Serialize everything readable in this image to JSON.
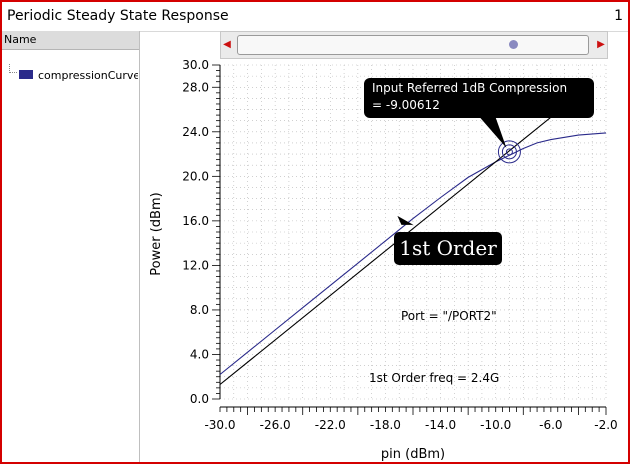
{
  "window": {
    "title": "Periodic Steady State Response",
    "subwindow_number": "1"
  },
  "legend_panel": {
    "header": "Name",
    "entries": [
      {
        "label": "compressionCurve",
        "color": "#2a2a8a"
      }
    ]
  },
  "scrollbar": {
    "left_arrow": "◀",
    "right_arrow": "▶"
  },
  "chart_data": {
    "type": "line",
    "xlabel": "pin (dBm)",
    "ylabel": "Power (dBm)",
    "xlim": [
      -30.0,
      -2.0
    ],
    "ylim": [
      0.0,
      30.0
    ],
    "x_ticks": [
      "-30.0",
      "-26.0",
      "-22.0",
      "-18.0",
      "-14.0",
      "-10.0",
      "-6.0",
      "-2.0"
    ],
    "y_ticks": [
      "0.0",
      "4.0",
      "8.0",
      "12.0",
      "16.0",
      "20.0",
      "24.0",
      "28.0",
      "30.0"
    ],
    "grid": true,
    "series": [
      {
        "name": "compressionCurve",
        "color": "#2a2a8a",
        "x": [
          -30,
          -28,
          -26,
          -24,
          -22,
          -20,
          -18,
          -16,
          -14,
          -12,
          -10,
          -9,
          -8,
          -7,
          -6,
          -4,
          -2
        ],
        "y": [
          2.2,
          4.2,
          6.2,
          8.2,
          10.2,
          12.2,
          14.2,
          16.2,
          18.1,
          19.9,
          21.3,
          21.9,
          22.5,
          23.0,
          23.3,
          23.7,
          23.9
        ]
      },
      {
        "color": "#000000",
        "x": [
          -30,
          -4.5
        ],
        "y": [
          1.3,
          26.8
        ]
      }
    ],
    "marker": {
      "x": -9.00612,
      "y": 22.2
    },
    "annotations": {
      "callout_line1": "Input Referred 1dB Compression",
      "callout_line2": "= -9.00612",
      "order_label": "1st Order",
      "port": "Port = \"/PORT2\"",
      "freq": "1st Order freq = 2.4G"
    }
  }
}
